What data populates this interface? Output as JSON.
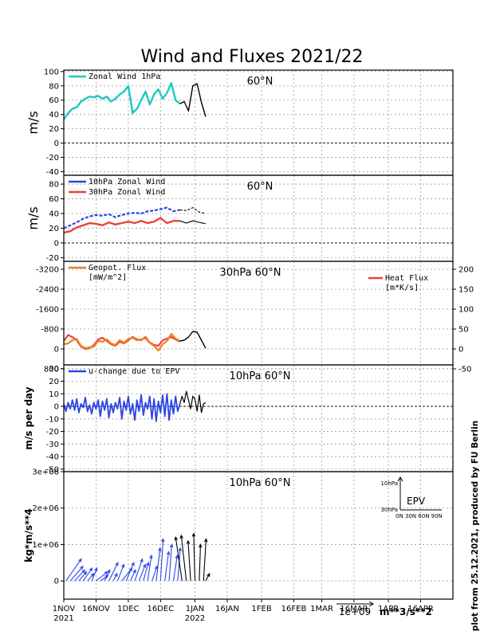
{
  "chart_data": {
    "type": "line",
    "title": "Wind and Fluxes 2021/22",
    "credit": "plot from 25.12.2021, produced by FU Berlin",
    "x_axis": {
      "ticks": [
        {
          "day": 0,
          "label": "1NOV",
          "sub": "2021"
        },
        {
          "day": 15,
          "label": "16NOV",
          "sub": ""
        },
        {
          "day": 30,
          "label": "1DEC",
          "sub": ""
        },
        {
          "day": 45,
          "label": "16DEC",
          "sub": ""
        },
        {
          "day": 61,
          "label": "1JAN",
          "sub": "2022"
        },
        {
          "day": 76,
          "label": "16JAN",
          "sub": ""
        },
        {
          "day": 92,
          "label": "1FEB",
          "sub": ""
        },
        {
          "day": 107,
          "label": "16FEB",
          "sub": ""
        },
        {
          "day": 120,
          "label": "1MAR",
          "sub": ""
        },
        {
          "day": 135,
          "label": "16MAR",
          "sub": ""
        },
        {
          "day": 151,
          "label": "1APR",
          "sub": ""
        },
        {
          "day": 166,
          "label": "16APR",
          "sub": ""
        }
      ],
      "xlim": [
        0,
        181
      ]
    },
    "panels": [
      {
        "id": "p1",
        "ylabel": "m/s",
        "region": "60°N",
        "ylim": [
          -45,
          102
        ],
        "yticks": [
          100,
          80,
          60,
          40,
          20,
          0,
          -20,
          -40
        ],
        "zero_line": true,
        "legend": [
          {
            "name": "Zonal Wind 1hPa",
            "color": "#1fc8c0"
          }
        ],
        "series": [
          {
            "name": "Zonal Wind 1hPa",
            "color": "#1fc8c0",
            "width": 2.4,
            "x": [
              0,
              2,
              4,
              6,
              8,
              10,
              12,
              14,
              16,
              18,
              20,
              22,
              24,
              26,
              28,
              30,
              32,
              34,
              36,
              38,
              40,
              42,
              44,
              46,
              48,
              50,
              52,
              54
            ],
            "y": [
              33,
              42,
              48,
              50,
              58,
              62,
              65,
              64,
              66,
              62,
              65,
              58,
              62,
              68,
              72,
              80,
              42,
              48,
              60,
              72,
              54,
              68,
              75,
              62,
              70,
              84,
              60,
              55
            ]
          },
          {
            "name": "forecast",
            "color": "#000000",
            "width": 1.4,
            "x": [
              54,
              56,
              58,
              60,
              62,
              64,
              66
            ],
            "y": [
              55,
              58,
              45,
              80,
              83,
              57,
              37
            ]
          }
        ]
      },
      {
        "id": "p2",
        "ylabel": "m/s",
        "region": "60°N",
        "ylim": [
          -25,
          92
        ],
        "yticks": [
          80,
          60,
          40,
          20,
          0,
          -20
        ],
        "zero_line": true,
        "legend": [
          {
            "name": "10hPa Zonal Wind",
            "color": "#2b45e6"
          },
          {
            "name": "30hPa Zonal Wind",
            "color": "#e8433a"
          }
        ],
        "series": [
          {
            "name": "10hPa Zonal Wind",
            "color": "#2b45e6",
            "width": 2.2,
            "dash": "4,2",
            "x": [
              0,
              3,
              6,
              9,
              12,
              15,
              18,
              21,
              24,
              27,
              30,
              33,
              36,
              39,
              42,
              45,
              48,
              51,
              54
            ],
            "y": [
              20,
              24,
              28,
              33,
              36,
              38,
              37,
              39,
              35,
              38,
              40,
              41,
              40,
              43,
              44,
              46,
              48,
              43,
              45
            ]
          },
          {
            "name": "10hPa forecast",
            "color": "#000000",
            "width": 1.1,
            "dash": "3,2",
            "x": [
              54,
              57,
              60,
              63,
              66
            ],
            "y": [
              45,
              44,
              48,
              42,
              40
            ]
          },
          {
            "name": "30hPa Zonal Wind",
            "color": "#e8433a",
            "width": 2.4,
            "x": [
              0,
              3,
              6,
              9,
              12,
              15,
              18,
              21,
              24,
              27,
              30,
              33,
              36,
              39,
              42,
              45,
              48,
              51,
              54
            ],
            "y": [
              14,
              16,
              21,
              24,
              27,
              26,
              24,
              28,
              25,
              27,
              29,
              27,
              30,
              27,
              29,
              34,
              27,
              30,
              30
            ]
          },
          {
            "name": "30hPa forecast",
            "color": "#000000",
            "width": 1.1,
            "x": [
              54,
              57,
              60,
              63,
              66
            ],
            "y": [
              30,
              27,
              30,
              28,
              26
            ]
          }
        ]
      },
      {
        "id": "p3",
        "ylabel": "",
        "region": "30hPa 60°N",
        "ylim": [
          -40,
          220
        ],
        "yticks_left": [
          {
            "v": 200,
            "l": "-3200"
          },
          {
            "v": 150,
            "l": "-2400"
          },
          {
            "v": 100,
            "l": "-1600"
          },
          {
            "v": 50,
            "l": "-800"
          },
          {
            "v": 0,
            "l": "0"
          },
          {
            "v": -50,
            "l": "800"
          }
        ],
        "yticks_right": [
          200,
          150,
          100,
          50,
          0,
          -50
        ],
        "zero_line": false,
        "legend": [
          {
            "name": "Geopot. Flux",
            "units": "[mW/m^2]",
            "color": "#f08020"
          }
        ],
        "legend_right": [
          {
            "name": "Heat Flux",
            "units": "[m*K/s]",
            "color": "#e8433a"
          }
        ],
        "series": [
          {
            "name": "Heat Flux",
            "color": "#e8433a",
            "width": 2.2,
            "x": [
              0,
              2,
              4,
              6,
              8,
              10,
              12,
              14,
              16,
              18,
              20,
              22,
              24,
              26,
              28,
              30,
              32,
              34,
              36,
              38,
              40,
              42,
              44,
              46,
              48,
              50,
              52,
              54
            ],
            "y": [
              20,
              35,
              30,
              22,
              6,
              0,
              2,
              10,
              24,
              28,
              20,
              12,
              8,
              18,
              14,
              22,
              30,
              24,
              22,
              30,
              16,
              10,
              8,
              22,
              26,
              30,
              24,
              18
            ]
          },
          {
            "name": "Geopot. Flux",
            "color": "#f08020",
            "width": 2.2,
            "x": [
              0,
              2,
              4,
              6,
              8,
              10,
              12,
              14,
              16,
              18,
              20,
              22,
              24,
              26,
              28,
              30,
              32,
              34,
              36,
              38,
              40,
              42,
              44,
              46,
              48,
              50,
              52,
              54
            ],
            "y": [
              12,
              14,
              22,
              25,
              8,
              2,
              4,
              6,
              20,
              18,
              24,
              14,
              10,
              22,
              16,
              25,
              28,
              22,
              24,
              27,
              15,
              8,
              -4,
              12,
              20,
              38,
              26,
              20
            ]
          },
          {
            "name": "forecast",
            "color": "#000000",
            "width": 1.4,
            "x": [
              54,
              56,
              58,
              60,
              62,
              64,
              66
            ],
            "y": [
              20,
              22,
              30,
              44,
              42,
              22,
              2
            ]
          }
        ]
      },
      {
        "id": "p4",
        "ylabel": "m/s per day",
        "region": "10hPa 60°N",
        "ylim": [
          -52,
          33
        ],
        "yticks": [
          30,
          20,
          10,
          0,
          -10,
          -20,
          -30,
          -40,
          -50
        ],
        "zero_line": true,
        "legend": [
          {
            "name": "u-change due to EPV",
            "color": "#2b45e6"
          }
        ],
        "series": [
          {
            "name": "u-change due to EPV",
            "color": "#2b45e6",
            "width": 1.8,
            "x": [
              0,
              1,
              2,
              3,
              4,
              5,
              6,
              7,
              8,
              9,
              10,
              11,
              12,
              13,
              14,
              15,
              16,
              17,
              18,
              19,
              20,
              21,
              22,
              23,
              24,
              25,
              26,
              27,
              28,
              29,
              30,
              31,
              32,
              33,
              34,
              35,
              36,
              37,
              38,
              39,
              40,
              41,
              42,
              43,
              44,
              45,
              46,
              47,
              48,
              49,
              50,
              51,
              52,
              53,
              54
            ],
            "y": [
              2,
              -4,
              3,
              -2,
              5,
              -3,
              6,
              -5,
              2,
              -1,
              7,
              -4,
              1,
              -6,
              3,
              -2,
              5,
              -8,
              4,
              -3,
              6,
              -9,
              2,
              -5,
              3,
              -2,
              7,
              -10,
              4,
              -3,
              8,
              -6,
              2,
              -11,
              5,
              -4,
              9,
              -7,
              3,
              -2,
              8,
              -10,
              6,
              -12,
              4,
              -5,
              9,
              -8,
              10,
              -11,
              5,
              -6,
              8,
              -4,
              2
            ]
          },
          {
            "name": "forecast",
            "color": "#000000",
            "width": 1.2,
            "x": [
              54,
              55,
              56,
              57,
              58,
              59,
              60,
              61,
              62,
              63,
              64,
              65,
              66
            ],
            "y": [
              2,
              8,
              3,
              12,
              5,
              -2,
              8,
              6,
              -4,
              9,
              -5,
              2,
              3
            ]
          }
        ]
      },
      {
        "id": "p5",
        "ylabel": "kg*m/s**4",
        "region": "10hPa 60°N",
        "ylim": [
          -500000,
          3000000
        ],
        "yticks": [
          {
            "v": 3000000,
            "l": "3e+06"
          },
          {
            "v": 2000000,
            "l": "2e+06"
          },
          {
            "v": 1000000,
            "l": "1e+06"
          },
          {
            "v": 0,
            "l": "0"
          }
        ],
        "zero_line": false,
        "arrows_obs_color": "#2b45e6",
        "arrows_fc_color": "#000000",
        "arrows": [
          {
            "day": 1,
            "dx": 12,
            "dy": 600000
          },
          {
            "day": 3,
            "dx": 10,
            "dy": 400000
          },
          {
            "day": 5,
            "dx": 8,
            "dy": 300000
          },
          {
            "day": 7,
            "dx": 6,
            "dy": 250000
          },
          {
            "day": 9,
            "dx": 7,
            "dy": 350000
          },
          {
            "day": 11,
            "dx": 5,
            "dy": 200000
          },
          {
            "day": 13,
            "dx": 4,
            "dy": 350000
          },
          {
            "day": 15,
            "dx": 9,
            "dy": 250000
          },
          {
            "day": 17,
            "dx": 6,
            "dy": 150000
          },
          {
            "day": 19,
            "dx": 4,
            "dy": 300000
          },
          {
            "day": 21,
            "dx": 7,
            "dy": 500000
          },
          {
            "day": 23,
            "dx": 3,
            "dy": 200000
          },
          {
            "day": 25,
            "dx": 5,
            "dy": 450000
          },
          {
            "day": 27,
            "dx": 8,
            "dy": 350000
          },
          {
            "day": 29,
            "dx": 6,
            "dy": 500000
          },
          {
            "day": 31,
            "dx": 4,
            "dy": 300000
          },
          {
            "day": 33,
            "dx": 6,
            "dy": 600000
          },
          {
            "day": 35,
            "dx": 5,
            "dy": 450000
          },
          {
            "day": 37,
            "dx": 4,
            "dy": 500000
          },
          {
            "day": 39,
            "dx": 3,
            "dy": 700000
          },
          {
            "day": 41,
            "dx": 4,
            "dy": 400000
          },
          {
            "day": 43,
            "dx": 3,
            "dy": 900000
          },
          {
            "day": 45,
            "dx": 2,
            "dy": 1150000
          },
          {
            "day": 47,
            "dx": 3,
            "dy": 800000
          },
          {
            "day": 49,
            "dx": 2,
            "dy": 1000000
          },
          {
            "day": 51,
            "dx": 3,
            "dy": 700000
          },
          {
            "day": 53,
            "dx": 2,
            "dy": 900000
          }
        ],
        "arrows_forecast": [
          {
            "day": 55,
            "dx": -5,
            "dy": 1200000
          },
          {
            "day": 57,
            "dx": -4,
            "dy": 1250000
          },
          {
            "day": 59,
            "dx": -2,
            "dy": 1100000
          },
          {
            "day": 61,
            "dx": -1,
            "dy": 1300000
          },
          {
            "day": 63,
            "dx": 1,
            "dy": 1000000
          },
          {
            "day": 65,
            "dx": 2,
            "dy": 1150000
          },
          {
            "day": 66,
            "dx": 3,
            "dy": 200000
          }
        ],
        "inset": {
          "title": "EPV",
          "y_top": "10hPa",
          "y_bottom": "30hPa",
          "x_labels": "0N 30N 60N 90N"
        },
        "scale_label": "1e+09",
        "scale_units": "m**3/s**2"
      }
    ]
  }
}
